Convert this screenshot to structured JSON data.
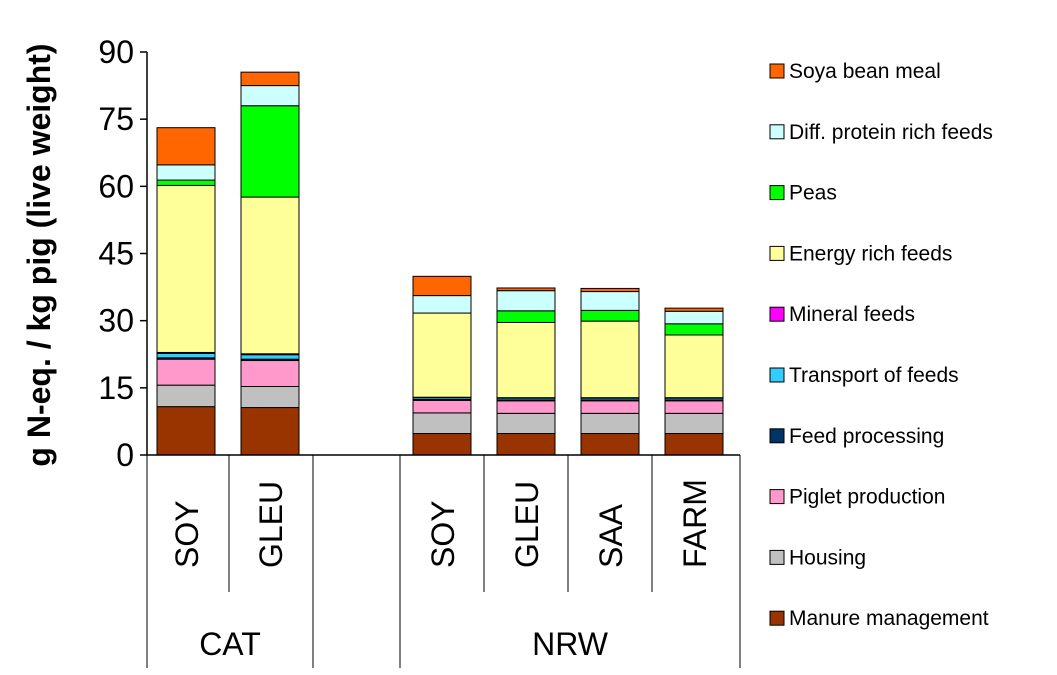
{
  "chart_data": {
    "type": "bar",
    "stacked": true,
    "ylabel": "g N-eq. / kg pig (live weight)",
    "ylim": [
      0,
      90
    ],
    "yticks": [
      0,
      15,
      30,
      45,
      60,
      75,
      90
    ],
    "grid": false,
    "legend_position": "right",
    "groups": [
      {
        "label": "CAT",
        "categories": [
          "SOY",
          "GLEU"
        ]
      },
      {
        "label": "NRW",
        "categories": [
          "SOY",
          "GLEU",
          "SAA",
          "FARM"
        ]
      }
    ],
    "categories": [
      "CAT SOY",
      "CAT GLEU",
      "NRW SOY",
      "NRW GLEU",
      "NRW SAA",
      "NRW FARM"
    ],
    "series": [
      {
        "name": "Manure management",
        "color": "#993300",
        "values": [
          10.8,
          10.6,
          4.8,
          4.8,
          4.8,
          4.8
        ]
      },
      {
        "name": "Housing",
        "color": "#c0c0c0",
        "values": [
          4.8,
          4.7,
          4.6,
          4.5,
          4.5,
          4.5
        ]
      },
      {
        "name": "Piglet production",
        "color": "#ff99cc",
        "values": [
          5.8,
          5.8,
          2.8,
          2.8,
          2.8,
          2.8
        ]
      },
      {
        "name": "Feed processing",
        "color": "#003366",
        "values": [
          0.3,
          0.3,
          0.2,
          0.2,
          0.2,
          0.2
        ]
      },
      {
        "name": "Transport of feeds",
        "color": "#33ccff",
        "values": [
          1.0,
          1.0,
          0.4,
          0.4,
          0.4,
          0.4
        ]
      },
      {
        "name": "Mineral feeds",
        "color": "#ff00ff",
        "values": [
          0.2,
          0.2,
          0.1,
          0.1,
          0.1,
          0.1
        ]
      },
      {
        "name": "Energy rich feeds",
        "color": "#ffff99",
        "values": [
          37.3,
          35.0,
          18.8,
          16.8,
          17.1,
          14.0
        ]
      },
      {
        "name": "Peas",
        "color": "#00ff00",
        "values": [
          1.2,
          20.4,
          0.0,
          2.6,
          2.4,
          2.5
        ]
      },
      {
        "name": "Diff. protein rich feeds",
        "color": "#ccffff",
        "values": [
          3.4,
          4.5,
          3.9,
          4.5,
          4.2,
          2.8
        ]
      },
      {
        "name": "Soya bean meal",
        "color": "#ff6600",
        "values": [
          8.3,
          3.0,
          4.3,
          0.6,
          0.7,
          0.7
        ]
      }
    ]
  }
}
